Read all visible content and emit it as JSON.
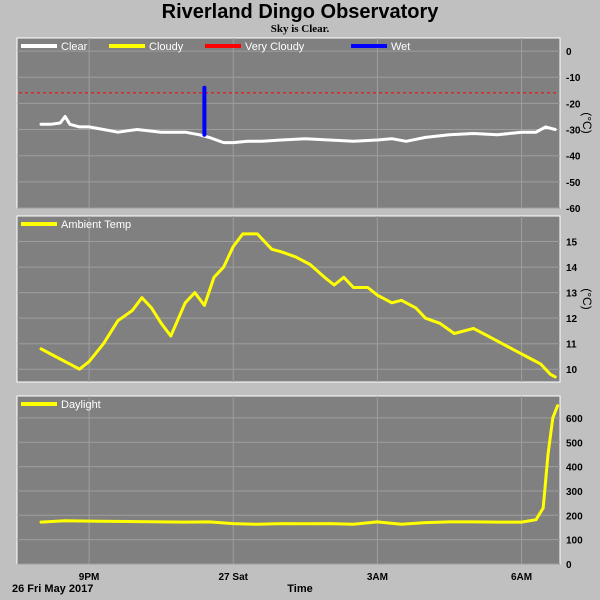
{
  "header": {
    "title": "Riverland Dingo Observatory",
    "subtitle": "Sky is Clear."
  },
  "footer": {
    "date": "26 Fri May 2017",
    "xlabel": "Time"
  },
  "colors": {
    "panel": "#808080",
    "grid": "#9e9e9e",
    "border": "#ffffff",
    "clear": "#ffffff",
    "cloudy": "#ffff00",
    "very_cloudy": "#ff0000",
    "wet": "#0000ff",
    "ambient": "#ffff00",
    "daylight": "#ffff00"
  },
  "chart_data": [
    {
      "type": "line",
      "name": "sky",
      "unit": "(°C)",
      "ylim": [
        -60,
        5
      ],
      "yticks": [
        0,
        -10,
        -20,
        -30,
        -40,
        -50,
        -60
      ],
      "xlim": [
        19.5,
        30.8
      ],
      "xticks": [
        {
          "x": 21,
          "label": "9PM"
        },
        {
          "x": 24,
          "label": "27 Sat"
        },
        {
          "x": 27,
          "label": "3AM"
        },
        {
          "x": 30,
          "label": "6AM"
        }
      ],
      "legend": [
        "Clear",
        "Cloudy",
        "Very Cloudy",
        "Wet"
      ],
      "threshold": {
        "name": "Very Cloudy",
        "y": -16
      },
      "series": [
        {
          "name": "Clear",
          "color": "#ffffff",
          "x": [
            20.0,
            20.2,
            20.4,
            20.5,
            20.6,
            20.8,
            21.0,
            21.3,
            21.6,
            22.0,
            22.5,
            23.0,
            23.3,
            23.5,
            23.8,
            24.0,
            24.3,
            24.6,
            25.0,
            25.5,
            26.0,
            26.5,
            27.0,
            27.3,
            27.6,
            28.0,
            28.5,
            29.0,
            29.5,
            30.0,
            30.3,
            30.5,
            30.7
          ],
          "y": [
            -28,
            -28,
            -27.5,
            -25,
            -28,
            -29,
            -29,
            -30,
            -31,
            -30,
            -31,
            -31,
            -32,
            -33,
            -35,
            -35,
            -34.5,
            -34.5,
            -34,
            -33.5,
            -34,
            -34.5,
            -34,
            -33.5,
            -34.5,
            -33,
            -32,
            -31.5,
            -32,
            -31,
            -31,
            -29,
            -30
          ]
        },
        {
          "name": "Wet",
          "color": "#0000ff",
          "x": [
            23.4,
            23.4
          ],
          "y": [
            -14,
            -32
          ]
        }
      ]
    },
    {
      "type": "line",
      "name": "ambient",
      "unit": "(°C)",
      "ylim": [
        9.5,
        16
      ],
      "yticks": [
        15,
        14,
        13,
        12,
        11,
        10
      ],
      "xlim": [
        19.5,
        30.8
      ],
      "legend": [
        "Ambient Temp"
      ],
      "series": [
        {
          "name": "Ambient Temp",
          "color": "#ffff00",
          "x": [
            20.0,
            20.3,
            20.6,
            20.8,
            21.0,
            21.3,
            21.6,
            21.9,
            22.1,
            22.3,
            22.5,
            22.7,
            23.0,
            23.2,
            23.4,
            23.6,
            23.8,
            24.0,
            24.2,
            24.5,
            24.8,
            25.0,
            25.3,
            25.6,
            25.9,
            26.1,
            26.3,
            26.5,
            26.8,
            27.0,
            27.3,
            27.5,
            27.8,
            28.0,
            28.3,
            28.6,
            29.0,
            29.3,
            29.6,
            29.9,
            30.2,
            30.4,
            30.6,
            30.7
          ],
          "y": [
            10.8,
            10.5,
            10.2,
            10.0,
            10.3,
            11.0,
            11.9,
            12.3,
            12.8,
            12.4,
            11.8,
            11.3,
            12.6,
            13.0,
            12.5,
            13.6,
            14.0,
            14.8,
            15.3,
            15.3,
            14.7,
            14.6,
            14.4,
            14.1,
            13.6,
            13.3,
            13.6,
            13.2,
            13.2,
            12.9,
            12.6,
            12.7,
            12.4,
            12.0,
            11.8,
            11.4,
            11.6,
            11.3,
            11.0,
            10.7,
            10.4,
            10.2,
            9.8,
            9.7
          ]
        }
      ]
    },
    {
      "type": "line",
      "name": "daylight",
      "unit": "",
      "ylim": [
        0,
        690
      ],
      "yticks": [
        600,
        500,
        400,
        300,
        200,
        100,
        0
      ],
      "xlim": [
        19.5,
        30.8
      ],
      "legend": [
        "Daylight"
      ],
      "series": [
        {
          "name": "Daylight",
          "color": "#ffff00",
          "x": [
            20.0,
            20.5,
            21.0,
            21.5,
            22.0,
            22.5,
            23.0,
            23.5,
            24.0,
            24.5,
            25.0,
            25.5,
            26.0,
            26.5,
            27.0,
            27.5,
            28.0,
            28.5,
            29.0,
            29.5,
            30.0,
            30.3,
            30.45,
            30.55,
            30.65,
            30.75
          ],
          "y": [
            172,
            178,
            176,
            175,
            174,
            173,
            172,
            173,
            166,
            163,
            166,
            165,
            166,
            163,
            173,
            163,
            170,
            173,
            173,
            172,
            172,
            182,
            230,
            450,
            600,
            650
          ]
        }
      ]
    }
  ]
}
